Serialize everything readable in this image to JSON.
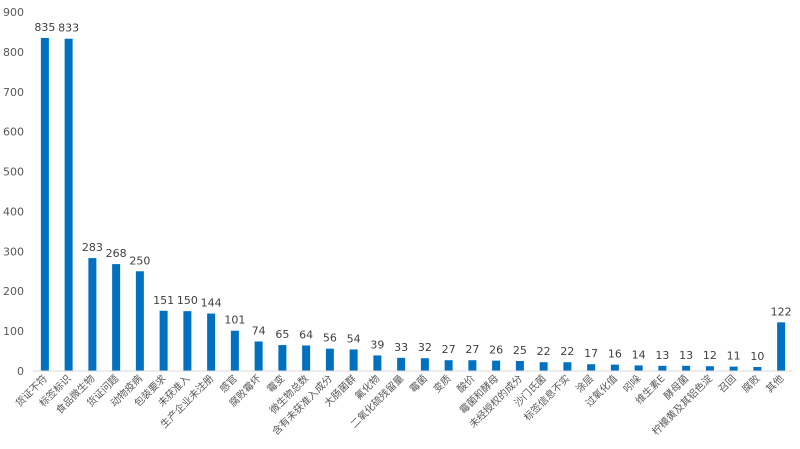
{
  "chart_data": {
    "type": "bar",
    "title": "",
    "xlabel": "",
    "ylabel": "",
    "ylim": [
      0,
      900
    ],
    "yticks": [
      0,
      100,
      200,
      300,
      400,
      500,
      600,
      700,
      800,
      900
    ],
    "grid": false,
    "legend": "none",
    "bar_color": "#0070C0",
    "categories": [
      "货证不符",
      "标签标识",
      "食品微生物",
      "货证问题",
      "动物疫病",
      "包装要求",
      "未获准入",
      "生产企业未注册",
      "感官",
      "腐败霉坏",
      "霉变",
      "微生物总数",
      "含有未获准入成分",
      "大肠菌群",
      "氟化物",
      "二氧化硫残留量",
      "霉菌",
      "变质",
      "酸价",
      "霉菌和酵母",
      "未经授权的成分",
      "沙门氏菌",
      "标签信息不实",
      "涂层",
      "过氧化值",
      "吲哚",
      "维生素E",
      "酵母菌",
      "柠檬黄及其铝色淀",
      "召回",
      "腐败",
      "其他"
    ],
    "values": [
      835,
      833,
      283,
      268,
      250,
      151,
      150,
      144,
      101,
      74,
      65,
      64,
      56,
      54,
      39,
      33,
      32,
      27,
      27,
      26,
      25,
      22,
      22,
      17,
      16,
      14,
      13,
      13,
      12,
      11,
      10,
      122
    ]
  }
}
